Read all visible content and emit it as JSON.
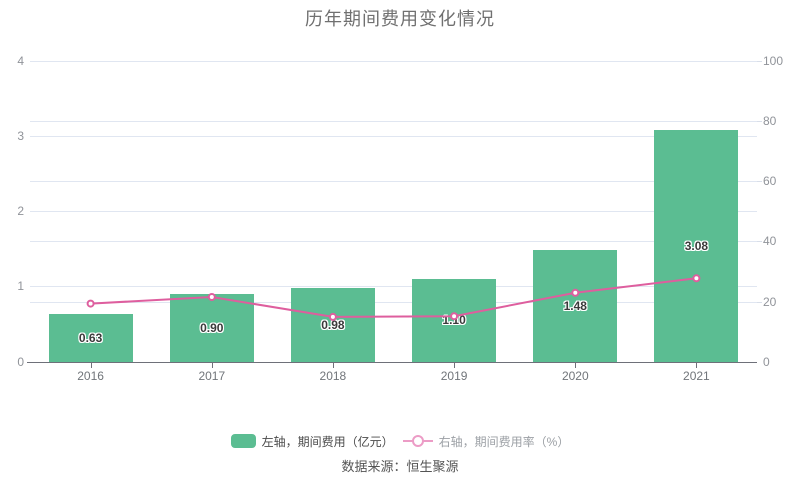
{
  "title": "历年期间费用变化情况",
  "source": "数据来源：恒生聚源",
  "legend": {
    "bar": {
      "label": "左轴，期间费用（亿元）",
      "color": "#5BBD92"
    },
    "line": {
      "label": "右轴，期间费用率（%）",
      "color": "#EC9CC6"
    }
  },
  "colors": {
    "bar": "#5BBD92",
    "line": "#DE5E9E",
    "grid": "#E0E6F1",
    "axis": "#6E7079"
  },
  "chart_data": {
    "type": "bar",
    "title": "历年期间费用变化情况",
    "categories": [
      "2016",
      "2017",
      "2018",
      "2019",
      "2020",
      "2021"
    ],
    "series": [
      {
        "name": "左轴，期间费用（亿元）",
        "type": "bar",
        "axis": "left",
        "values": [
          0.63,
          0.9,
          0.98,
          1.1,
          1.48,
          3.08
        ],
        "labels": [
          "0.63",
          "0.90",
          "0.98",
          "1.10",
          "1.48",
          "3.08"
        ],
        "color": "#5BBD92"
      },
      {
        "name": "右轴，期间费用率（%）",
        "type": "line",
        "axis": "right",
        "values": [
          19.3,
          21.5,
          14.9,
          15.1,
          22.9,
          27.7
        ],
        "values_estimated": true,
        "color": "#DE5E9E",
        "marker": "hollow-circle"
      }
    ],
    "left_axis": {
      "min": 0,
      "max": 4,
      "tick_labels": [
        "0",
        "1",
        "2",
        "3",
        "4"
      ]
    },
    "right_axis": {
      "min": 0,
      "max": 100,
      "tick_labels": [
        "0",
        "20",
        "40",
        "60",
        "80",
        "100"
      ]
    },
    "grid": true,
    "legend_position": "bottom"
  }
}
